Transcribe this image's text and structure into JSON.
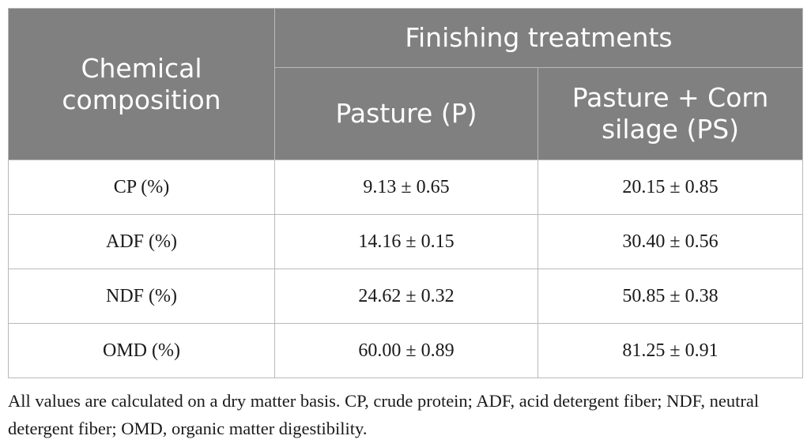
{
  "table": {
    "header": {
      "row_label": "Chemical composition",
      "group_label": "Finishing treatments",
      "columns": [
        "Pasture (P)",
        "Pasture + Corn silage (PS)"
      ]
    },
    "rows": [
      {
        "label": "CP (%)",
        "values": [
          "9.13 ± 0.65",
          "20.15 ± 0.85"
        ]
      },
      {
        "label": "ADF (%)",
        "values": [
          "14.16 ± 0.15",
          "30.40 ± 0.56"
        ]
      },
      {
        "label": "NDF (%)",
        "values": [
          "24.62 ± 0.32",
          "50.85 ± 0.38"
        ]
      },
      {
        "label": "OMD (%)",
        "values": [
          "60.00 ± 0.89",
          "81.25 ± 0.91"
        ]
      }
    ],
    "colors": {
      "header_bg": "#808080",
      "header_text": "#ffffff",
      "border": "#b9b9b9"
    }
  },
  "footnote": "All values are calculated on a dry matter basis. CP, crude protein; ADF, acid detergent fiber; NDF, neutral detergent fiber; OMD, organic matter digestibility."
}
